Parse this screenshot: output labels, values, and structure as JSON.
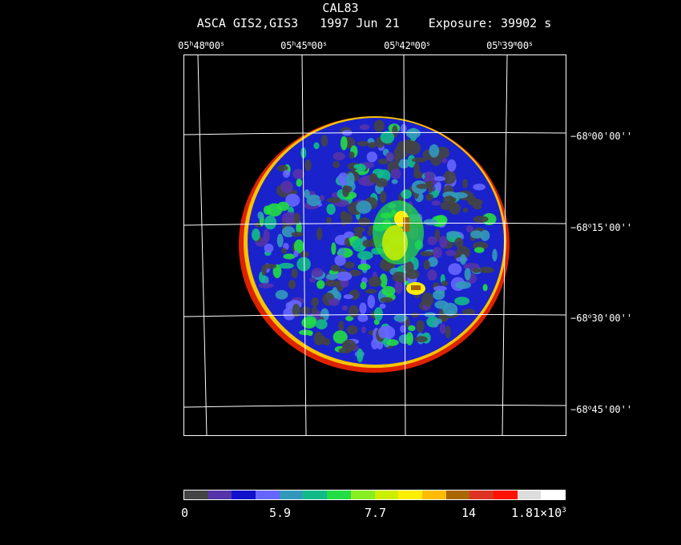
{
  "header": {
    "title": "CAL83",
    "subtitle": "ASCA GIS2,GIS3   1997 Jun 21    Exposure: 39902 s"
  },
  "ra_labels": [
    {
      "h": "05",
      "m": "48",
      "s": "00"
    },
    {
      "h": "05",
      "m": "45",
      "s": "00"
    },
    {
      "h": "05",
      "m": "42",
      "s": "00"
    },
    {
      "h": "05",
      "m": "39",
      "s": "00"
    }
  ],
  "dec_labels": [
    {
      "d": "−68",
      "m": "00",
      "s": "00"
    },
    {
      "d": "−68",
      "m": "15",
      "s": "00"
    },
    {
      "d": "−68",
      "m": "30",
      "s": "00"
    },
    {
      "d": "−68",
      "m": "45",
      "s": "00"
    }
  ],
  "units": {
    "h": "h",
    "m": "m",
    "s": "s",
    "deg": "o"
  },
  "colorbar": {
    "colors": [
      "#444444",
      "#5533aa",
      "#1111cc",
      "#6666ff",
      "#3399bb",
      "#11bb88",
      "#22dd44",
      "#88ee22",
      "#ccee00",
      "#ffee00",
      "#ffbb00",
      "#aa6600",
      "#dd3322",
      "#ff1100",
      "#dddddd",
      "#ffffff"
    ],
    "labels": [
      "0",
      "5.9",
      "7.7",
      "14"
    ],
    "max_label": {
      "mantissa": "1.81×10",
      "exponent": "3"
    }
  }
}
